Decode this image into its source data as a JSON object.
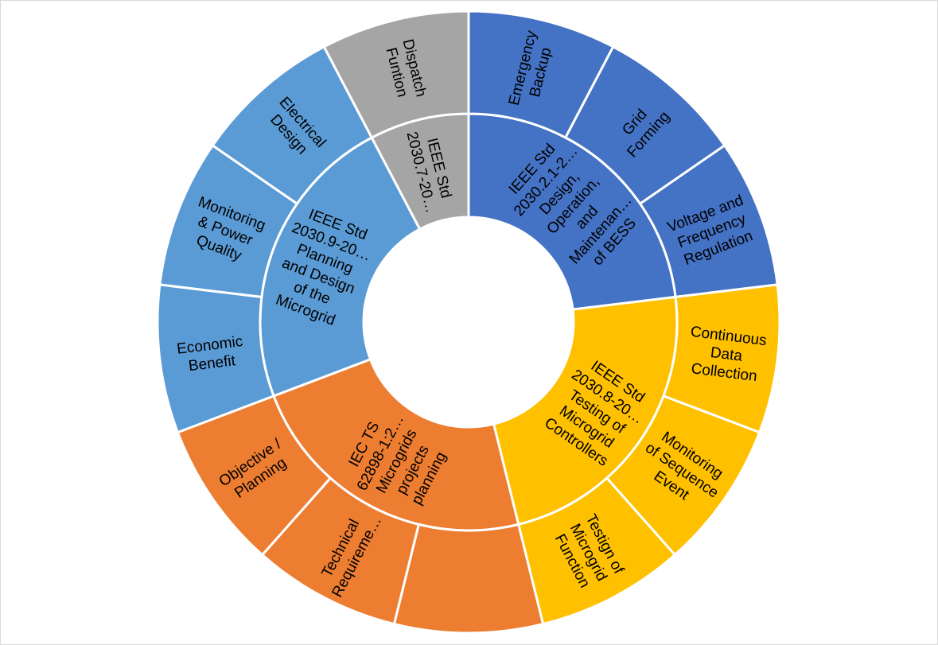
{
  "chart_data": {
    "type": "sunburst",
    "title": "",
    "start_angle_deg": 0,
    "direction": "clockwise",
    "groups": [
      {
        "label": [
          "IEEE Std",
          "2030.2.1-2…",
          "Design,",
          "Operation,",
          "and",
          "Maintenan…",
          "of BESS"
        ],
        "color": "#4472C4",
        "children": [
          {
            "label": [
              "Emergency",
              "Backup"
            ],
            "value": 1
          },
          {
            "label": [
              "Grid",
              "Forming"
            ],
            "value": 1
          },
          {
            "label": [
              "Voltage and",
              "Frequency",
              "Regulation"
            ],
            "value": 1
          }
        ]
      },
      {
        "label": [
          "IEEE Std",
          "2030.8-20…",
          "Testing of",
          "Microgrid",
          "Controllers"
        ],
        "color": "#FFC000",
        "children": [
          {
            "label": [
              "Continuous",
              "Data",
              "Collection"
            ],
            "value": 1
          },
          {
            "label": [
              "Monitoring",
              "of Sequence",
              "Event"
            ],
            "value": 1
          },
          {
            "label": [
              "Testign of",
              "Microgrid",
              "Function"
            ],
            "value": 1
          }
        ]
      },
      {
        "label": [
          "IEC TS",
          "62898-1:2…",
          "Microgrids",
          "projects",
          "planning"
        ],
        "color": "#ED7D31",
        "children": [
          {
            "label": [],
            "value": 1
          },
          {
            "label": [
              "Technical",
              "Requireme…"
            ],
            "value": 1
          },
          {
            "label": [
              "Objective /",
              "Planning"
            ],
            "value": 1
          }
        ]
      },
      {
        "label": [
          "IEEE Std",
          "2030.9-20…",
          "Planning",
          "and Design",
          "of the",
          "Microgrid"
        ],
        "color": "#5B9BD5",
        "children": [
          {
            "label": [
              "Economic",
              "Benefit"
            ],
            "value": 1
          },
          {
            "label": [
              "Monitoring",
              "& Power",
              "Quality"
            ],
            "value": 1
          },
          {
            "label": [
              "Electrical",
              "Design"
            ],
            "value": 1
          }
        ]
      },
      {
        "label": [
          "IEEE Std",
          "2030.7-20…"
        ],
        "color": "#A5A5A5",
        "children": [
          {
            "label": [
              "Dispatch",
              "Funtion"
            ],
            "value": 1
          }
        ]
      }
    ]
  }
}
